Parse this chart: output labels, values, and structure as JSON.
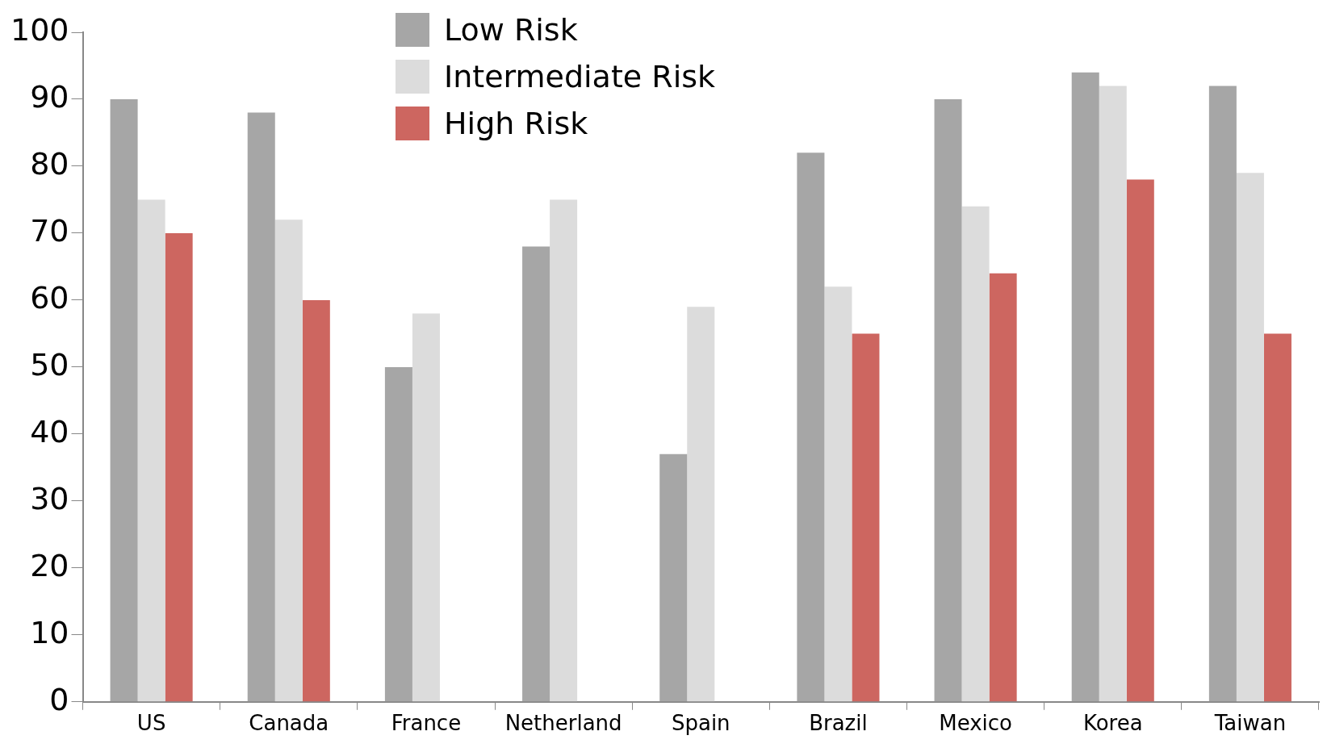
{
  "chart_data": {
    "type": "bar",
    "categories": [
      "US",
      "Canada",
      "France",
      "Netherland",
      "Spain",
      "Brazil",
      "Mexico",
      "Korea",
      "Taiwan"
    ],
    "series": [
      {
        "name": "Low Risk",
        "color": "#a6a6a6",
        "values": [
          90,
          88,
          50,
          68,
          37,
          82,
          90,
          94,
          92
        ]
      },
      {
        "name": "Intermediate Risk",
        "color": "#dcdcdc",
        "values": [
          75,
          72,
          58,
          75,
          59,
          62,
          74,
          92,
          79
        ]
      },
      {
        "name": "High Risk",
        "color": "#cd6660",
        "values": [
          70,
          60,
          null,
          null,
          null,
          55,
          64,
          78,
          55
        ]
      }
    ],
    "ylim": [
      0,
      100
    ],
    "yticks": [
      0,
      10,
      20,
      30,
      40,
      50,
      60,
      70,
      80,
      90,
      100
    ],
    "grid": false,
    "legend": "top"
  }
}
